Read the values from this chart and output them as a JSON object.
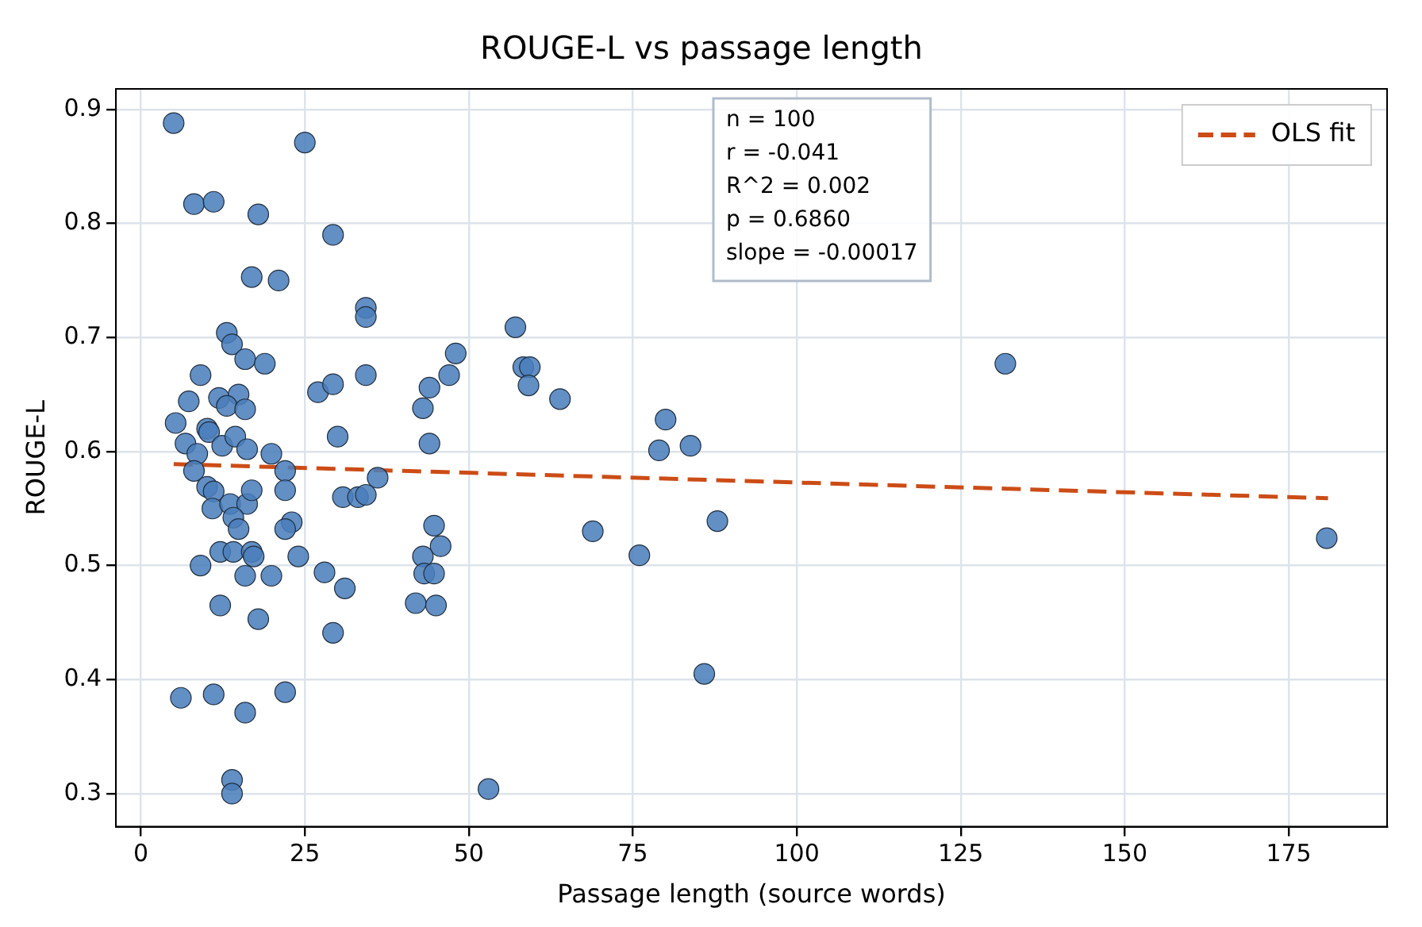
{
  "chart_data": {
    "type": "scatter",
    "title": "ROUGE-L vs passage length",
    "xlabel": "Passage length (source words)",
    "ylabel": "ROUGE-L",
    "xlim": [
      -3.8,
      190
    ],
    "xticks": [
      0,
      25,
      50,
      75,
      100,
      125,
      150,
      175
    ],
    "ylim": [
      0.271,
      0.918
    ],
    "yticks": [
      0.3,
      0.4,
      0.5,
      0.6,
      0.7,
      0.8,
      0.9
    ],
    "grid": true,
    "legend": "top right",
    "annotations": [
      "n = 100",
      "r = -0.041",
      "R^2 = 0.002",
      "p = 0.6860",
      "slope = -0.00017"
    ],
    "series": [
      {
        "marker": "circle",
        "color": "#4a7ebb",
        "x": [
          5.0,
          25,
          8.1,
          11.1,
          17.9,
          29.3,
          16.9,
          21,
          34.3,
          34.3,
          13.1,
          13.9,
          15.9,
          18.9,
          9.1,
          34.3,
          27.0,
          29.3,
          7.3,
          11.9,
          14.9,
          13.1,
          15.9,
          44,
          43,
          5.3,
          30,
          44,
          10.1,
          6.8,
          10.4,
          12.4,
          14.4,
          16.2,
          19.9,
          8.6,
          8.1,
          10.1,
          11.1,
          10.9,
          13.6,
          16.2,
          16.9,
          14.1,
          14.9,
          22.0,
          22.0,
          23.0,
          22,
          30.8,
          33.1,
          34.3,
          36.1,
          12.1,
          14.1,
          16.9,
          17.2,
          9.1,
          15.9,
          19.9,
          24.0,
          28,
          31.1,
          12.1,
          17.9,
          29.3,
          6.1,
          11.1,
          22,
          15.9,
          13.9,
          13.9,
          44.7,
          45.7,
          43,
          43.2,
          44.7,
          41.9,
          45,
          57.1,
          48,
          47,
          58.3,
          59.3,
          59.1,
          63.9,
          80,
          79,
          83.8,
          131.8,
          68.9,
          76,
          87.9,
          85.9,
          53,
          180.8
        ],
        "values": [
          0.888,
          0.871,
          0.817,
          0.819,
          0.808,
          0.79,
          0.753,
          0.75,
          0.726,
          0.718,
          0.704,
          0.694,
          0.681,
          0.677,
          0.667,
          0.667,
          0.652,
          0.659,
          0.644,
          0.647,
          0.65,
          0.64,
          0.637,
          0.656,
          0.638,
          0.625,
          0.613,
          0.607,
          0.62,
          0.607,
          0.617,
          0.605,
          0.613,
          0.602,
          0.598,
          0.598,
          0.583,
          0.569,
          0.565,
          0.55,
          0.554,
          0.554,
          0.566,
          0.542,
          0.532,
          0.583,
          0.566,
          0.538,
          0.532,
          0.56,
          0.56,
          0.562,
          0.577,
          0.512,
          0.512,
          0.512,
          0.508,
          0.5,
          0.491,
          0.491,
          0.508,
          0.494,
          0.48,
          0.465,
          0.453,
          0.441,
          0.384,
          0.387,
          0.389,
          0.371,
          0.312,
          0.3,
          0.535,
          0.517,
          0.508,
          0.493,
          0.493,
          0.467,
          0.465,
          0.709,
          0.686,
          0.667,
          0.674,
          0.674,
          0.658,
          0.646,
          0.628,
          0.601,
          0.605,
          0.677,
          0.53,
          0.509,
          0.539,
          0.405,
          0.304,
          0.524
        ]
      },
      {
        "type": "line",
        "marker": "none",
        "name": "OLS fit",
        "color": "#cc4c16",
        "line_style": "dashed",
        "x": [
          5,
          181
        ],
        "values": [
          0.589,
          0.559
        ]
      }
    ]
  }
}
